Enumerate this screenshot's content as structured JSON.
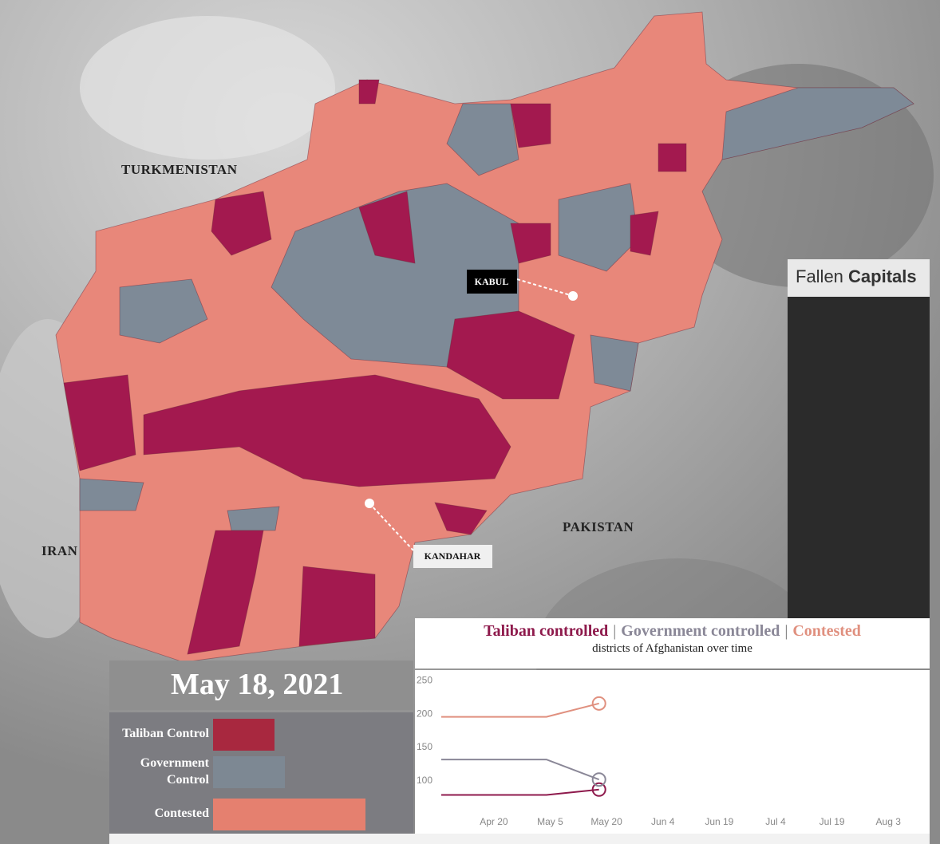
{
  "map": {
    "countries": [
      "TURKMENISTAN",
      "IRAN",
      "PAKISTAN"
    ],
    "cities": [
      "KABUL",
      "KANDAHAR"
    ]
  },
  "fallen_capitals": {
    "title": [
      "Fallen",
      "Capitals"
    ]
  },
  "date_panel": {
    "date": "May 18, 2021",
    "labels": [
      "Taliban Control",
      "Government Control",
      "Contested"
    ],
    "colors": [
      "#a8283f",
      "#7d8893",
      "#e5806f"
    ]
  },
  "chart_data": {
    "type": "line",
    "title_separator": "|",
    "subtitle": "districts of Afghanistan over time",
    "x": [
      "Apr 6",
      "May 4",
      "May 18"
    ],
    "series": [
      {
        "name": "Taliban controlled",
        "color": "#8e1a4c",
        "values": [
          78,
          78,
          86
        ]
      },
      {
        "name": "Government controlled",
        "color": "#8a8797",
        "values": [
          131,
          131,
          101
        ]
      },
      {
        "name": "Contested",
        "color": "#e0907f",
        "values": [
          195,
          195,
          215
        ]
      }
    ],
    "xlim": [
      "Mar 30",
      "Aug 14"
    ],
    "xticks": [
      "Apr 20",
      "May 5",
      "May 20",
      "Jun 4",
      "Jun 19",
      "Jul 4",
      "Jul 19",
      "Aug 3"
    ],
    "ylim": [
      20,
      265
    ],
    "yticks": [
      100,
      150,
      200,
      250
    ],
    "grid": false
  }
}
